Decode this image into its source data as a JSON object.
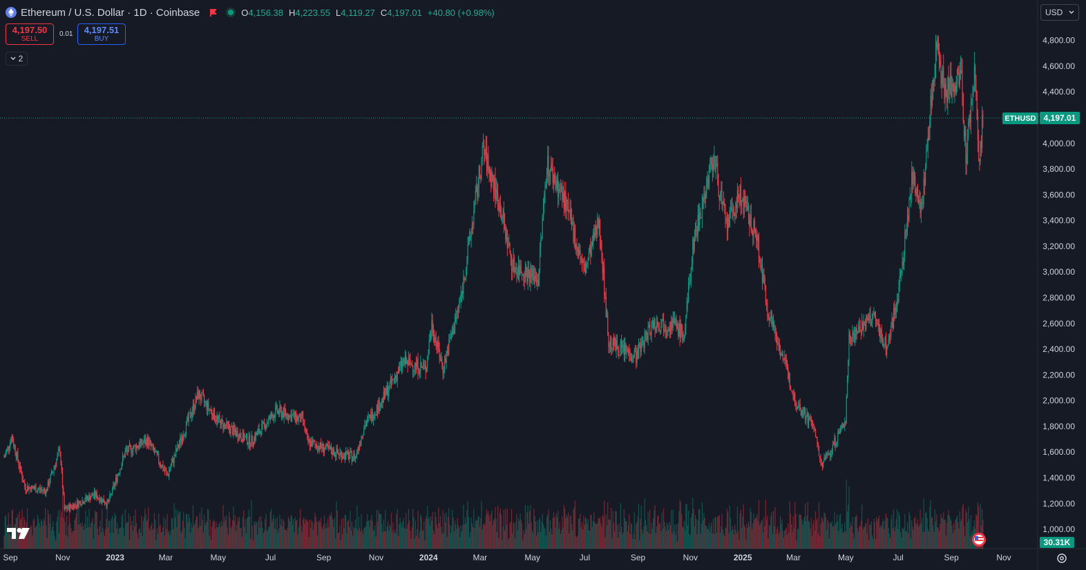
{
  "header": {
    "symbol_title": "Ethereum / U.S. Dollar · 1D · Coinbase",
    "ohlc": {
      "o_label": "O",
      "o_value": "4,156.38",
      "h_label": "H",
      "h_value": "4,223.55",
      "l_label": "L",
      "l_value": "4,119.27",
      "c_label": "C",
      "c_value": "4,197.01",
      "change": "+40.80 (+0.98%)"
    }
  },
  "trade": {
    "sell_price": "4,197.50",
    "sell_label": "SELL",
    "spread": "0.01",
    "buy_price": "4,197.51",
    "buy_label": "BUY"
  },
  "indicator_toggle": {
    "count": "2"
  },
  "currency_selector": {
    "value": "USD"
  },
  "colors": {
    "background": "#161a25",
    "up": "#089981",
    "down": "#f23645",
    "grid_text": "#d1d4dc",
    "buy": "#2962ff"
  },
  "chart_data": {
    "type": "candlestick",
    "series_label": "ETHUSD",
    "last_price": 4197.01,
    "last_price_label": "4,197.01",
    "volume_label": "30.31K",
    "y_axis": {
      "range": [
        850,
        5050
      ],
      "ticks": [
        "1,000.00",
        "1,200.00",
        "1,400.00",
        "1,600.00",
        "1,800.00",
        "2,000.00",
        "2,200.00",
        "2,400.00",
        "2,600.00",
        "2,800.00",
        "3,000.00",
        "3,200.00",
        "3,400.00",
        "3,600.00",
        "3,800.00",
        "4,000.00",
        "4,200.00",
        "4,400.00",
        "4,600.00",
        "4,800.00"
      ],
      "tick_values": [
        1000,
        1200,
        1400,
        1600,
        1800,
        2000,
        2200,
        2400,
        2600,
        2800,
        3000,
        3200,
        3400,
        3600,
        3800,
        4000,
        4200,
        4400,
        4600,
        4800
      ]
    },
    "x_axis": {
      "range": [
        "2022-09-01",
        "2025-11-09"
      ],
      "ticks": [
        {
          "label": "Sep",
          "date": "2022-09-01",
          "bold": false
        },
        {
          "label": "Nov",
          "date": "2022-11-01",
          "bold": false
        },
        {
          "label": "2023",
          "date": "2023-01-01",
          "bold": true
        },
        {
          "label": "Mar",
          "date": "2023-03-01",
          "bold": false
        },
        {
          "label": "May",
          "date": "2023-05-01",
          "bold": false
        },
        {
          "label": "Jul",
          "date": "2023-07-01",
          "bold": false
        },
        {
          "label": "Sep",
          "date": "2023-09-01",
          "bold": false
        },
        {
          "label": "Nov",
          "date": "2023-11-01",
          "bold": false
        },
        {
          "label": "2024",
          "date": "2024-01-01",
          "bold": true
        },
        {
          "label": "Mar",
          "date": "2024-03-01",
          "bold": false
        },
        {
          "label": "May",
          "date": "2024-05-01",
          "bold": false
        },
        {
          "label": "Jul",
          "date": "2024-07-01",
          "bold": false
        },
        {
          "label": "Sep",
          "date": "2024-09-01",
          "bold": false
        },
        {
          "label": "Nov",
          "date": "2024-11-01",
          "bold": false
        },
        {
          "label": "2025",
          "date": "2025-01-01",
          "bold": true
        },
        {
          "label": "Mar",
          "date": "2025-03-01",
          "bold": false
        },
        {
          "label": "May",
          "date": "2025-05-01",
          "bold": false
        },
        {
          "label": "Jul",
          "date": "2025-07-01",
          "bold": false
        },
        {
          "label": "Sep",
          "date": "2025-09-01",
          "bold": false
        },
        {
          "label": "Nov",
          "date": "2025-11-01",
          "bold": false
        }
      ]
    },
    "grid": false,
    "price_path": [
      {
        "date": "2022-09-01",
        "close": 1560
      },
      {
        "date": "2022-09-10",
        "close": 1720
      },
      {
        "date": "2022-09-25",
        "close": 1330
      },
      {
        "date": "2022-10-20",
        "close": 1300
      },
      {
        "date": "2022-11-05",
        "close": 1620
      },
      {
        "date": "2022-11-10",
        "close": 1150
      },
      {
        "date": "2022-12-15",
        "close": 1270
      },
      {
        "date": "2022-12-31",
        "close": 1200
      },
      {
        "date": "2023-01-20",
        "close": 1600
      },
      {
        "date": "2023-02-15",
        "close": 1690
      },
      {
        "date": "2023-03-10",
        "close": 1420
      },
      {
        "date": "2023-04-15",
        "close": 2050
      },
      {
        "date": "2023-05-10",
        "close": 1830
      },
      {
        "date": "2023-06-15",
        "close": 1680
      },
      {
        "date": "2023-07-15",
        "close": 1920
      },
      {
        "date": "2023-08-15",
        "close": 1850
      },
      {
        "date": "2023-08-20",
        "close": 1680
      },
      {
        "date": "2023-09-25",
        "close": 1590
      },
      {
        "date": "2023-10-15",
        "close": 1560
      },
      {
        "date": "2023-10-25",
        "close": 1800
      },
      {
        "date": "2023-11-15",
        "close": 2000
      },
      {
        "date": "2023-12-10",
        "close": 2300
      },
      {
        "date": "2024-01-05",
        "close": 2250
      },
      {
        "date": "2024-01-12",
        "close": 2600
      },
      {
        "date": "2024-01-25",
        "close": 2250
      },
      {
        "date": "2024-02-15",
        "close": 2800
      },
      {
        "date": "2024-03-12",
        "close": 3950
      },
      {
        "date": "2024-04-01",
        "close": 3500
      },
      {
        "date": "2024-04-15",
        "close": 3050
      },
      {
        "date": "2024-05-15",
        "close": 2950
      },
      {
        "date": "2024-05-25",
        "close": 3850
      },
      {
        "date": "2024-06-15",
        "close": 3550
      },
      {
        "date": "2024-07-08",
        "close": 3000
      },
      {
        "date": "2024-07-25",
        "close": 3400
      },
      {
        "date": "2024-08-05",
        "close": 2450
      },
      {
        "date": "2024-09-06",
        "close": 2350
      },
      {
        "date": "2024-09-25",
        "close": 2600
      },
      {
        "date": "2024-10-20",
        "close": 2600
      },
      {
        "date": "2024-11-01",
        "close": 2500
      },
      {
        "date": "2024-11-12",
        "close": 3250
      },
      {
        "date": "2024-12-05",
        "close": 3900
      },
      {
        "date": "2024-12-20",
        "close": 3350
      },
      {
        "date": "2025-01-05",
        "close": 3600
      },
      {
        "date": "2025-01-25",
        "close": 3250
      },
      {
        "date": "2025-02-05",
        "close": 2750
      },
      {
        "date": "2025-02-28",
        "close": 2250
      },
      {
        "date": "2025-03-10",
        "close": 2000
      },
      {
        "date": "2025-04-01",
        "close": 1800
      },
      {
        "date": "2025-04-09",
        "close": 1500
      },
      {
        "date": "2025-04-20",
        "close": 1600
      },
      {
        "date": "2025-05-08",
        "close": 1850
      },
      {
        "date": "2025-05-12",
        "close": 2500
      },
      {
        "date": "2025-06-10",
        "close": 2650
      },
      {
        "date": "2025-06-25",
        "close": 2400
      },
      {
        "date": "2025-07-10",
        "close": 2900
      },
      {
        "date": "2025-07-25",
        "close": 3750
      },
      {
        "date": "2025-08-05",
        "close": 3500
      },
      {
        "date": "2025-08-22",
        "close": 4800
      },
      {
        "date": "2025-09-01",
        "close": 4400
      },
      {
        "date": "2025-09-20",
        "close": 4500
      },
      {
        "date": "2025-09-25",
        "close": 3900
      },
      {
        "date": "2025-10-06",
        "close": 4600
      },
      {
        "date": "2025-10-10",
        "close": 3800
      },
      {
        "date": "2025-10-15",
        "close": 4197
      }
    ]
  }
}
